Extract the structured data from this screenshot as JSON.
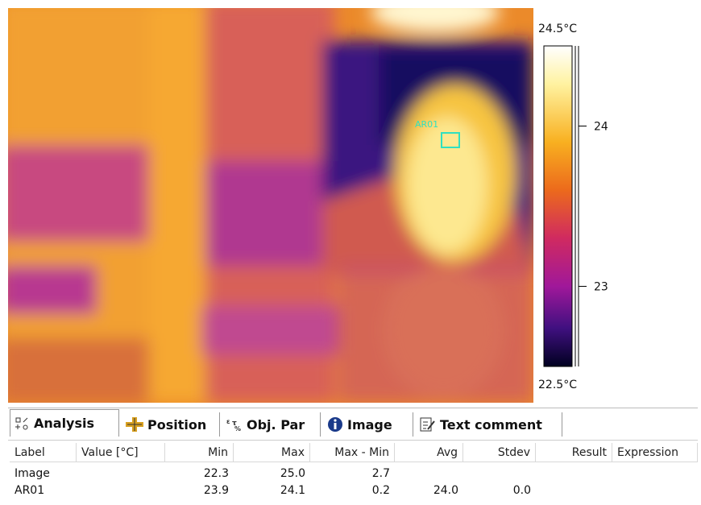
{
  "image_overlay": {
    "roi_label": "AR01"
  },
  "colorbar": {
    "range": [
      {
        "value": 22.5,
        "label": "22.5°C"
      },
      {
        "value": 24.5,
        "label": "24.5°C"
      }
    ],
    "ticks": [
      24,
      23
    ]
  },
  "tabs": [
    "Analysis",
    "Position",
    "Obj. Par",
    "Image",
    "Text comment"
  ],
  "table": {
    "columns": [
      "Label",
      "Value [°C]",
      "Min",
      "Max",
      "Max - Min",
      "Avg",
      "Stdev",
      "Result",
      "Expression"
    ],
    "rows": [
      [
        "Image",
        null,
        "22.3",
        "25.0",
        "2.7",
        null,
        null,
        null,
        null
      ],
      [
        "AR01",
        null,
        "23.9",
        "24.1",
        "0.2",
        "24.0",
        "0.0",
        null,
        null
      ]
    ]
  }
}
